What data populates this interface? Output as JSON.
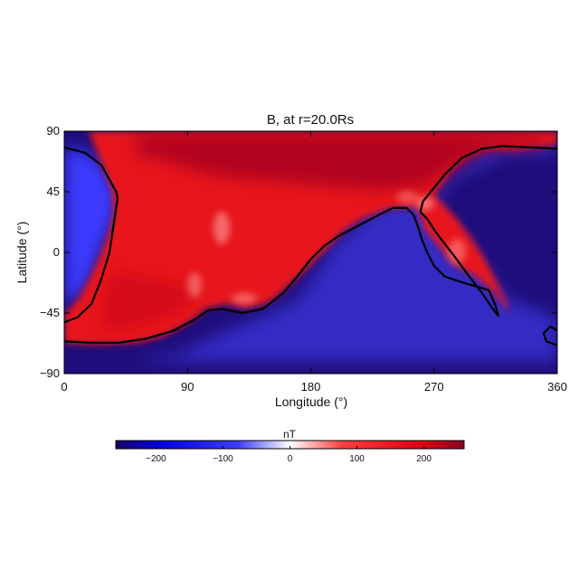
{
  "chart_data": {
    "type": "heatmap",
    "title": "B, at r=20.0Rs",
    "xlabel": "Longitude (°)",
    "ylabel": "Latitude (°)",
    "xlim": [
      0,
      360
    ],
    "ylim": [
      -90,
      90
    ],
    "x_ticks": [
      0,
      90,
      180,
      270,
      360
    ],
    "y_ticks": [
      90,
      45,
      0,
      -45,
      -90
    ],
    "x_tick_labels": [
      "0",
      "90",
      "180",
      "270",
      "360"
    ],
    "y_tick_labels": [
      "90",
      "45",
      "0",
      "−45",
      "−90"
    ],
    "colorbar": {
      "label": "nT",
      "range": [
        -260,
        260
      ],
      "ticks": [
        -200,
        -100,
        0,
        100,
        200
      ],
      "tick_labels": [
        "−200",
        "−100",
        "0",
        "100",
        "200"
      ],
      "colors": [
        "#1a0066",
        "#0000ff",
        "#ffffff",
        "#ff2020",
        "#8c0020"
      ]
    },
    "polarity_inversion_line": [
      [
        [
          0,
          78
        ],
        [
          15,
          74
        ],
        [
          27,
          65
        ],
        [
          38,
          45
        ],
        [
          39,
          40
        ],
        [
          36,
          20
        ],
        [
          33,
          0
        ],
        [
          27,
          -20
        ],
        [
          20,
          -38
        ],
        [
          10,
          -48
        ],
        [
          0,
          -52
        ]
      ],
      [
        [
          0,
          -66
        ],
        [
          20,
          -67
        ],
        [
          40,
          -67
        ],
        [
          60,
          -64
        ],
        [
          80,
          -58
        ],
        [
          95,
          -50
        ],
        [
          105,
          -43
        ],
        [
          115,
          -42
        ],
        [
          130,
          -45
        ],
        [
          145,
          -42
        ],
        [
          160,
          -30
        ],
        [
          170,
          -18
        ],
        [
          180,
          -5
        ],
        [
          190,
          5
        ],
        [
          200,
          12
        ],
        [
          215,
          20
        ],
        [
          230,
          28
        ],
        [
          240,
          33
        ],
        [
          250,
          33
        ],
        [
          255,
          28
        ],
        [
          258,
          20
        ],
        [
          261,
          10
        ],
        [
          265,
          0
        ],
        [
          270,
          -10
        ],
        [
          278,
          -18
        ],
        [
          290,
          -22
        ],
        [
          300,
          -25
        ],
        [
          310,
          -28
        ],
        [
          315,
          -40
        ],
        [
          317,
          -47
        ],
        [
          313,
          -42
        ],
        [
          305,
          -30
        ],
        [
          295,
          -17
        ],
        [
          285,
          -3
        ],
        [
          275,
          10
        ],
        [
          270,
          17
        ],
        [
          265,
          25
        ],
        [
          260,
          30
        ],
        [
          262,
          38
        ],
        [
          270,
          48
        ],
        [
          278,
          58
        ],
        [
          290,
          70
        ],
        [
          305,
          77
        ],
        [
          320,
          79
        ],
        [
          340,
          78
        ],
        [
          360,
          77
        ]
      ],
      [
        [
          360,
          -58
        ],
        [
          355,
          -55
        ],
        [
          350,
          -60
        ],
        [
          352,
          -66
        ],
        [
          360,
          -69
        ]
      ]
    ]
  }
}
